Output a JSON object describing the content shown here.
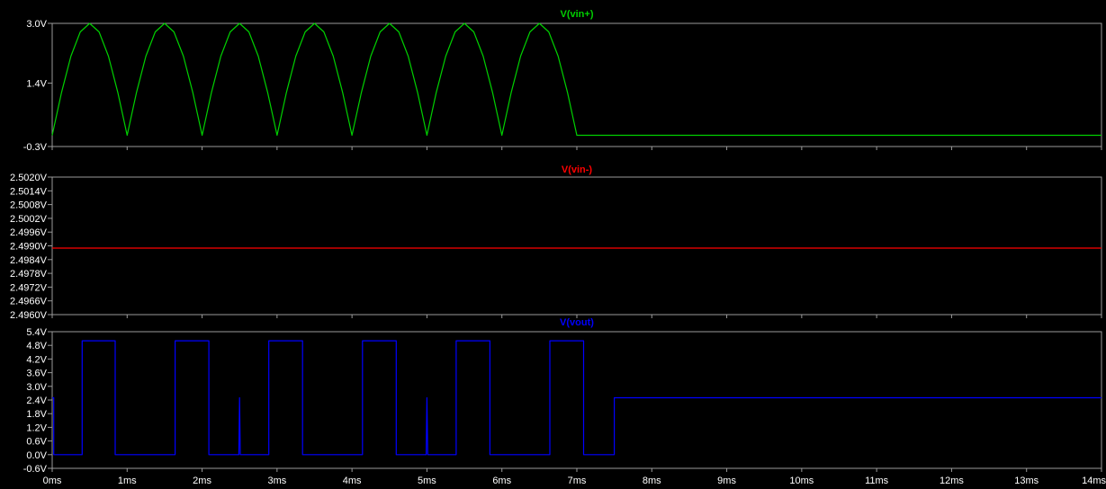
{
  "chart_data": [
    {
      "type": "line",
      "title": "V(vin+)",
      "color": "#00d000",
      "xlim": [
        0,
        14
      ],
      "ylim": [
        -0.3,
        3.0
      ],
      "xticks": [
        "0ms",
        "1ms",
        "2ms",
        "3ms",
        "4ms",
        "5ms",
        "6ms",
        "7ms",
        "8ms",
        "9ms",
        "10ms",
        "11ms",
        "12ms",
        "13ms",
        "14ms"
      ],
      "yticks": [
        "3.0V",
        "1.4V",
        "-0.3V"
      ],
      "ytick_values": [
        3.0,
        1.4,
        -0.3
      ],
      "series": [
        {
          "x": [
            0.0,
            0.125,
            0.25,
            0.375,
            0.5,
            0.625,
            0.75,
            0.875,
            1.0,
            1.125,
            1.25,
            1.375,
            1.5,
            1.625,
            1.75,
            1.875,
            2.0,
            2.125,
            2.25,
            2.375,
            2.5,
            2.625,
            2.75,
            2.875,
            3.0,
            3.125,
            3.25,
            3.375,
            3.5,
            3.625,
            3.75,
            3.875,
            4.0,
            4.125,
            4.25,
            4.375,
            4.5,
            4.625,
            4.75,
            4.875,
            5.0,
            5.125,
            5.25,
            5.375,
            5.5,
            5.625,
            5.75,
            5.875,
            6.0,
            6.125,
            6.25,
            6.375,
            6.5,
            6.625,
            6.75,
            6.875,
            7.0,
            7.125,
            7.25,
            7.375,
            7.5,
            14.0
          ],
          "y": [
            0.0,
            1.15,
            2.12,
            2.77,
            3.0,
            2.77,
            2.12,
            1.15,
            0.0,
            1.15,
            2.12,
            2.77,
            3.0,
            2.77,
            2.12,
            1.15,
            0.0,
            1.15,
            2.12,
            2.77,
            3.0,
            2.77,
            2.12,
            1.15,
            0.0,
            1.15,
            2.12,
            2.77,
            3.0,
            2.77,
            2.12,
            1.15,
            0.0,
            1.15,
            2.12,
            2.77,
            3.0,
            2.77,
            2.12,
            1.15,
            0.0,
            1.15,
            2.12,
            2.77,
            3.0,
            2.77,
            2.12,
            1.15,
            0.0,
            1.15,
            2.12,
            2.77,
            3.0,
            2.77,
            2.12,
            1.15,
            0.0,
            0.0,
            0.0,
            0.0,
            0.0,
            0.0
          ]
        }
      ]
    },
    {
      "type": "line",
      "title": "V(vin-)",
      "color": "#ff0000",
      "xlim": [
        0,
        14
      ],
      "ylim": [
        2.496,
        2.502
      ],
      "xticks": [
        "0ms",
        "1ms",
        "2ms",
        "3ms",
        "4ms",
        "5ms",
        "6ms",
        "7ms",
        "8ms",
        "9ms",
        "10ms",
        "11ms",
        "12ms",
        "13ms",
        "14ms"
      ],
      "yticks": [
        "2.5020V",
        "2.5014V",
        "2.5008V",
        "2.5002V",
        "2.4996V",
        "2.4990V",
        "2.4984V",
        "2.4978V",
        "2.4972V",
        "2.4966V",
        "2.4960V"
      ],
      "ytick_values": [
        2.502,
        2.5014,
        2.5008,
        2.5002,
        2.4996,
        2.499,
        2.4984,
        2.4978,
        2.4972,
        2.4966,
        2.496
      ],
      "series": [
        {
          "x": [
            0,
            14
          ],
          "y": [
            2.4989,
            2.4989
          ]
        }
      ]
    },
    {
      "type": "line",
      "title": "V(vout)",
      "color": "#0000ff",
      "xlim": [
        0,
        14
      ],
      "ylim": [
        -0.6,
        5.4
      ],
      "xticks": [
        "0ms",
        "1ms",
        "2ms",
        "3ms",
        "4ms",
        "5ms",
        "6ms",
        "7ms",
        "8ms",
        "9ms",
        "10ms",
        "11ms",
        "12ms",
        "13ms",
        "14ms"
      ],
      "yticks": [
        "5.4V",
        "4.8V",
        "4.2V",
        "3.6V",
        "3.0V",
        "2.4V",
        "1.8V",
        "1.2V",
        "0.6V",
        "0.0V",
        "-0.6V"
      ],
      "ytick_values": [
        5.4,
        4.8,
        4.2,
        3.6,
        3.0,
        2.4,
        1.8,
        1.2,
        0.6,
        0.0,
        -0.6
      ],
      "series": [
        {
          "x": [
            0.0,
            0.0,
            0.02,
            0.02,
            0.4,
            0.4,
            0.84,
            0.84,
            1.64,
            1.64,
            2.09,
            2.09,
            2.49,
            2.5,
            2.51,
            2.89,
            2.89,
            3.34,
            3.34,
            4.14,
            4.14,
            4.59,
            4.59,
            4.99,
            5.0,
            5.01,
            5.39,
            5.39,
            5.84,
            5.84,
            6.64,
            6.64,
            7.09,
            7.09,
            7.5,
            7.5,
            14.0
          ],
          "y": [
            2.5,
            2.5,
            2.5,
            0.0,
            0.0,
            5.0,
            5.0,
            0.0,
            0.0,
            5.0,
            5.0,
            0.0,
            0.0,
            2.5,
            0.0,
            0.0,
            5.0,
            5.0,
            0.0,
            0.0,
            5.0,
            5.0,
            0.0,
            0.0,
            2.5,
            0.0,
            0.0,
            5.0,
            5.0,
            0.0,
            0.0,
            5.0,
            5.0,
            0.0,
            0.0,
            2.5,
            2.5
          ]
        }
      ]
    }
  ]
}
